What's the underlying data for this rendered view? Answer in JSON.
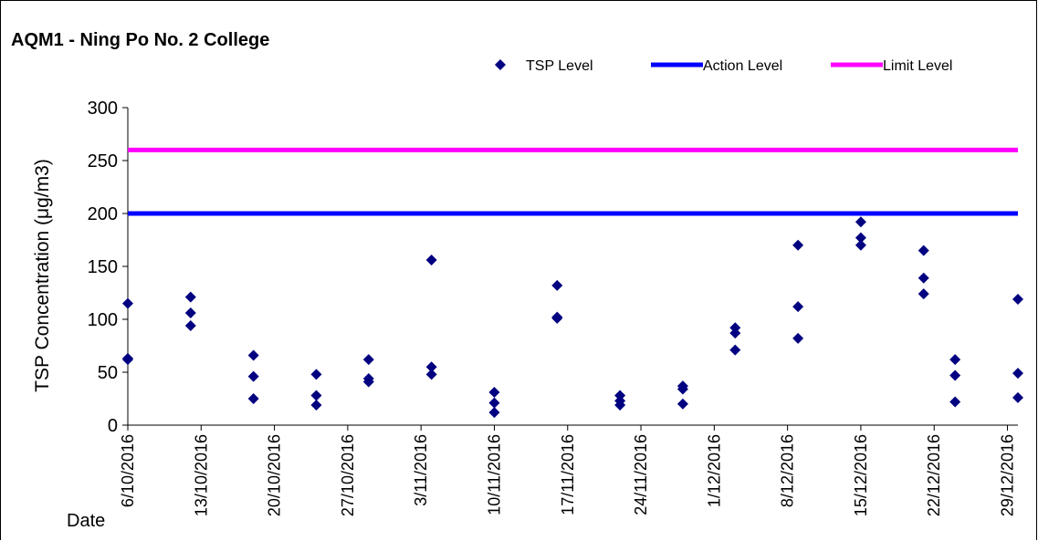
{
  "chart_data": {
    "type": "scatter",
    "title": "AQM1 - Ning Po No. 2 College",
    "ylabel": "TSP Concentration (μg/m3)",
    "xlabel": "Date",
    "ylim": [
      0,
      300
    ],
    "yticks": [
      0,
      50,
      100,
      150,
      200,
      250,
      300
    ],
    "xlim": [
      "6/10/2016",
      "30/12/2016"
    ],
    "xticks": [
      "6/10/2016",
      "13/10/2016",
      "20/10/2016",
      "27/10/2016",
      "3/11/2016",
      "10/11/2016",
      "17/11/2016",
      "24/11/2016",
      "1/12/2016",
      "8/12/2016",
      "15/12/2016",
      "22/12/2016",
      "29/12/2016"
    ],
    "legend_position": "top-right",
    "grid": false,
    "series": [
      {
        "name": "TSP Level",
        "marker": "diamond",
        "color": "#000080",
        "points": [
          {
            "x": "6/10/2016",
            "y": 115
          },
          {
            "x": "6/10/2016",
            "y": 63
          },
          {
            "x": "6/10/2016",
            "y": 62
          },
          {
            "x": "12/10/2016",
            "y": 121
          },
          {
            "x": "12/10/2016",
            "y": 106
          },
          {
            "x": "12/10/2016",
            "y": 94
          },
          {
            "x": "18/10/2016",
            "y": 66
          },
          {
            "x": "18/10/2016",
            "y": 46
          },
          {
            "x": "18/10/2016",
            "y": 25
          },
          {
            "x": "24/10/2016",
            "y": 48
          },
          {
            "x": "24/10/2016",
            "y": 28
          },
          {
            "x": "24/10/2016",
            "y": 19
          },
          {
            "x": "29/10/2016",
            "y": 62
          },
          {
            "x": "29/10/2016",
            "y": 44
          },
          {
            "x": "29/10/2016",
            "y": 41
          },
          {
            "x": "4/11/2016",
            "y": 156
          },
          {
            "x": "4/11/2016",
            "y": 55
          },
          {
            "x": "4/11/2016",
            "y": 48
          },
          {
            "x": "10/11/2016",
            "y": 31
          },
          {
            "x": "10/11/2016",
            "y": 21
          },
          {
            "x": "10/11/2016",
            "y": 12
          },
          {
            "x": "16/11/2016",
            "y": 132
          },
          {
            "x": "16/11/2016",
            "y": 102
          },
          {
            "x": "16/11/2016",
            "y": 101
          },
          {
            "x": "22/11/2016",
            "y": 28
          },
          {
            "x": "22/11/2016",
            "y": 23
          },
          {
            "x": "22/11/2016",
            "y": 19
          },
          {
            "x": "28/11/2016",
            "y": 37
          },
          {
            "x": "28/11/2016",
            "y": 34
          },
          {
            "x": "28/11/2016",
            "y": 20
          },
          {
            "x": "3/12/2016",
            "y": 92
          },
          {
            "x": "3/12/2016",
            "y": 87
          },
          {
            "x": "3/12/2016",
            "y": 71
          },
          {
            "x": "9/12/2016",
            "y": 170
          },
          {
            "x": "9/12/2016",
            "y": 112
          },
          {
            "x": "9/12/2016",
            "y": 82
          },
          {
            "x": "15/12/2016",
            "y": 192
          },
          {
            "x": "15/12/2016",
            "y": 177
          },
          {
            "x": "15/12/2016",
            "y": 170
          },
          {
            "x": "21/12/2016",
            "y": 165
          },
          {
            "x": "21/12/2016",
            "y": 139
          },
          {
            "x": "21/12/2016",
            "y": 124
          },
          {
            "x": "24/12/2016",
            "y": 62
          },
          {
            "x": "24/12/2016",
            "y": 47
          },
          {
            "x": "24/12/2016",
            "y": 22
          },
          {
            "x": "30/12/2016",
            "y": 119
          },
          {
            "x": "30/12/2016",
            "y": 49
          },
          {
            "x": "30/12/2016",
            "y": 26
          }
        ]
      },
      {
        "name": "Action Level",
        "type": "line",
        "color": "#0000ff",
        "value": 200
      },
      {
        "name": "Limit Level",
        "type": "line",
        "color": "#ff00ff",
        "value": 260
      }
    ]
  }
}
